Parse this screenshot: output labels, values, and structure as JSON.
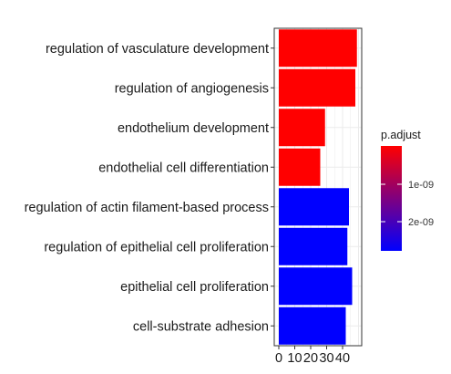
{
  "chart_data": {
    "type": "bar",
    "orientation": "horizontal",
    "categories": [
      "regulation of vasculature development",
      "regulation of angiogenesis",
      "endothelium development",
      "endothelial cell differentiation",
      "regulation of actin filament-based process",
      "regulation of epithelial cell proliferation",
      "epithelial cell proliferation",
      "cell-substrate adhesion"
    ],
    "values": [
      49,
      48,
      29,
      26,
      44,
      43,
      46,
      42
    ],
    "bar_colors": [
      "#FF0000",
      "#FF0000",
      "#FF0000",
      "#FF0000",
      "#0000FF",
      "#0000FF",
      "#0000FF",
      "#0000FF"
    ],
    "xticks": [
      "0",
      "10",
      "20",
      "30",
      "40"
    ],
    "xlim": [
      0,
      50
    ],
    "grid": true,
    "legend": {
      "title": "p.adjust",
      "position": "right",
      "ticks": [
        "1e-09",
        "2e-09"
      ],
      "color_high_pvalue": "#0000FF",
      "color_low_pvalue": "#FF0000"
    }
  }
}
